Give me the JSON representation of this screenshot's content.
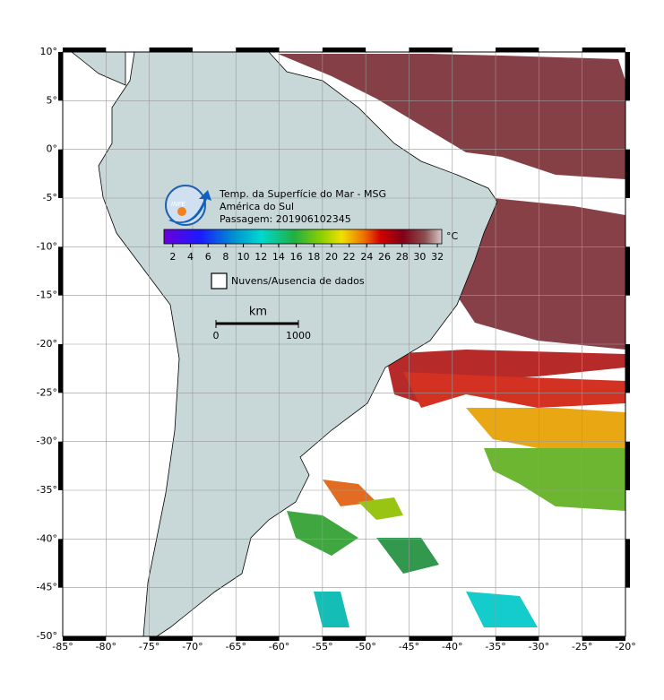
{
  "map": {
    "title_lines": [
      "Temp. da Superfície do Mar - MSG",
      "América do Sul",
      "Passagem: 201906102345"
    ],
    "logo_text": "INPE",
    "colorbar": {
      "range": [
        1,
        32.5
      ],
      "ticks": [
        2,
        4,
        6,
        8,
        10,
        12,
        14,
        16,
        18,
        20,
        22,
        24,
        26,
        28,
        30,
        32
      ],
      "unit": "°C"
    },
    "legend": "Nuvens/Ausencia de dados",
    "scale_bar": {
      "unit": "km",
      "ticks": [
        0,
        1000
      ]
    },
    "lonlim": [
      -85,
      -20
    ],
    "latlim": [
      -50,
      10
    ],
    "lonticks": [
      {
        "value": -85,
        "label": "-85°"
      },
      {
        "value": -80,
        "label": "-80°"
      },
      {
        "value": -75,
        "label": "-75°"
      },
      {
        "value": -70,
        "label": "-70°"
      },
      {
        "value": -65,
        "label": "-65°"
      },
      {
        "value": -60,
        "label": "-60°"
      },
      {
        "value": -55,
        "label": "-55°"
      },
      {
        "value": -50,
        "label": "-50°"
      },
      {
        "value": -45,
        "label": "-45°"
      },
      {
        "value": -40,
        "label": "-40°"
      },
      {
        "value": -35,
        "label": "-35°"
      },
      {
        "value": -30,
        "label": "-30°"
      },
      {
        "value": -25,
        "label": "-25°"
      },
      {
        "value": -20,
        "label": "-20°"
      }
    ],
    "latticks": [
      {
        "value": 10,
        "label": "10°"
      },
      {
        "value": 5,
        "label": "5°"
      },
      {
        "value": 0,
        "label": "0°"
      },
      {
        "value": -5,
        "label": "-5°"
      },
      {
        "value": -10,
        "label": "-10°"
      },
      {
        "value": -15,
        "label": "-15°"
      },
      {
        "value": -20,
        "label": "-20°"
      },
      {
        "value": -25,
        "label": "-25°"
      },
      {
        "value": -30,
        "label": "-30°"
      },
      {
        "value": -35,
        "label": "-35°"
      },
      {
        "value": -40,
        "label": "-40°"
      },
      {
        "value": -45,
        "label": "-45°"
      },
      {
        "value": -50,
        "label": "-50°"
      }
    ],
    "grid": true
  }
}
